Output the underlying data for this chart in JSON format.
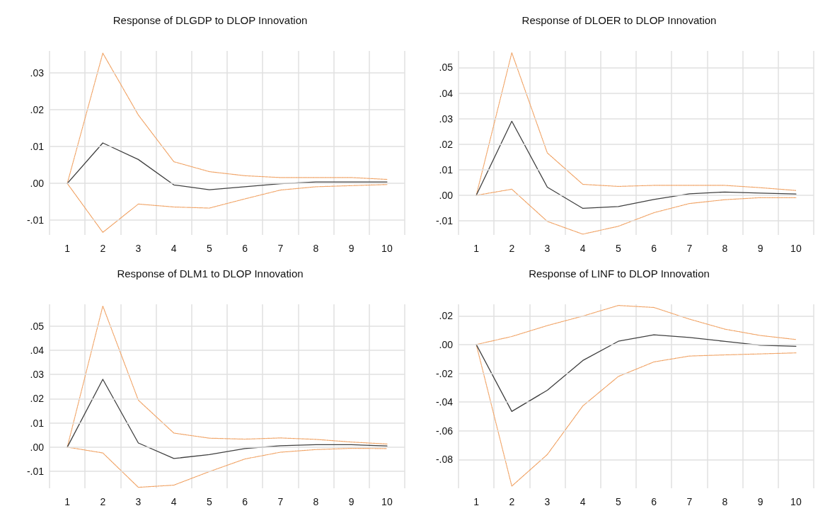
{
  "chart_data": [
    {
      "type": "line",
      "title": "Response of DLGDP to DLOP Innovation",
      "categories": [
        "1",
        "2",
        "3",
        "4",
        "5",
        "6",
        "7",
        "8",
        "9",
        "10"
      ],
      "ylim": [
        -0.014,
        0.036
      ],
      "yticks": [
        {
          "value": -0.01,
          "label": "-.01"
        },
        {
          "value": 0,
          "label": ".00"
        },
        {
          "value": 0.01,
          "label": ".01"
        },
        {
          "value": 0.02,
          "label": ".02"
        },
        {
          "value": 0.03,
          "label": ".03"
        }
      ],
      "grid": true,
      "marker": "none",
      "series": [
        {
          "color": "#404040",
          "line_style": "solid",
          "values": [
            0,
            0.011,
            0.0065,
            -0.0004,
            -0.0017,
            -0.0009,
            -0.0001,
            0.0004,
            0.0004,
            0.0004
          ]
        },
        {
          "color": "#f0a060",
          "line_style": "dotted",
          "values": [
            0,
            0.0354,
            0.0186,
            0.0059,
            0.0032,
            0.0021,
            0.0016,
            0.0016,
            0.0016,
            0.0011
          ]
        },
        {
          "color": "#f0a060",
          "line_style": "dotted",
          "values": [
            0,
            -0.0133,
            -0.0056,
            -0.0064,
            -0.0067,
            -0.0042,
            -0.0018,
            -0.0009,
            -0.0006,
            -0.0003
          ]
        }
      ]
    },
    {
      "type": "line",
      "title": "Response of DLOER to DLOP Innovation",
      "categories": [
        "1",
        "2",
        "3",
        "4",
        "5",
        "6",
        "7",
        "8",
        "9",
        "10"
      ],
      "ylim": [
        -0.0155,
        0.0565
      ],
      "yticks": [
        {
          "value": -0.01,
          "label": "-.01"
        },
        {
          "value": 0,
          "label": ".00"
        },
        {
          "value": 0.01,
          "label": ".01"
        },
        {
          "value": 0.02,
          "label": ".02"
        },
        {
          "value": 0.03,
          "label": ".03"
        },
        {
          "value": 0.04,
          "label": ".04"
        },
        {
          "value": 0.05,
          "label": ".05"
        }
      ],
      "grid": true,
      "marker": "none",
      "series": [
        {
          "color": "#404040",
          "line_style": "solid",
          "values": [
            0,
            0.029,
            0.0032,
            -0.0051,
            -0.0044,
            -0.0016,
            0.0006,
            0.0013,
            0.0009,
            0.0005
          ]
        },
        {
          "color": "#f0a060",
          "line_style": "dotted",
          "values": [
            0,
            0.0558,
            0.0166,
            0.0043,
            0.0035,
            0.0039,
            0.0039,
            0.0039,
            0.003,
            0.0019
          ]
        },
        {
          "color": "#f0a060",
          "line_style": "dotted",
          "values": [
            0,
            0.0024,
            -0.0102,
            -0.0152,
            -0.0121,
            -0.0068,
            -0.0032,
            -0.0017,
            -0.0009,
            -0.0009
          ]
        }
      ]
    },
    {
      "type": "line",
      "title": "Response of DLM1 to DLOP Innovation",
      "categories": [
        "1",
        "2",
        "3",
        "4",
        "5",
        "6",
        "7",
        "8",
        "9",
        "10"
      ],
      "ylim": [
        -0.017,
        0.059
      ],
      "yticks": [
        {
          "value": -0.01,
          "label": "-.01"
        },
        {
          "value": 0,
          "label": ".00"
        },
        {
          "value": 0.01,
          "label": ".01"
        },
        {
          "value": 0.02,
          "label": ".02"
        },
        {
          "value": 0.03,
          "label": ".03"
        },
        {
          "value": 0.04,
          "label": ".04"
        },
        {
          "value": 0.05,
          "label": ".05"
        }
      ],
      "grid": true,
      "marker": "none",
      "series": [
        {
          "color": "#404040",
          "line_style": "solid",
          "values": [
            0,
            0.028,
            0.0017,
            -0.0047,
            -0.0031,
            -0.0006,
            0.0006,
            0.001,
            0.001,
            0.0005
          ]
        },
        {
          "color": "#f0a060",
          "line_style": "dotted",
          "values": [
            0,
            0.0583,
            0.0194,
            0.0058,
            0.0037,
            0.0033,
            0.0038,
            0.0032,
            0.0021,
            0.0013
          ]
        },
        {
          "color": "#f0a060",
          "line_style": "dotted",
          "values": [
            0,
            -0.0024,
            -0.0166,
            -0.0157,
            -0.0101,
            -0.0049,
            -0.0021,
            -0.001,
            -0.0005,
            -0.0006
          ]
        }
      ]
    },
    {
      "type": "line",
      "title": "Response of LINF to DLOP Innovation",
      "categories": [
        "1",
        "2",
        "3",
        "4",
        "5",
        "6",
        "7",
        "8",
        "9",
        "10"
      ],
      "ylim": [
        -0.1,
        0.028
      ],
      "yticks": [
        {
          "value": -0.08,
          "label": "-.08"
        },
        {
          "value": -0.06,
          "label": "-.06"
        },
        {
          "value": -0.04,
          "label": "-.04"
        },
        {
          "value": -0.02,
          "label": "-.02"
        },
        {
          "value": 0,
          "label": ".00"
        },
        {
          "value": 0.02,
          "label": ".02"
        }
      ],
      "grid": true,
      "marker": "none",
      "series": [
        {
          "color": "#404040",
          "line_style": "solid",
          "values": [
            0,
            -0.0465,
            -0.0318,
            -0.0111,
            0.0023,
            0.0068,
            0.0049,
            0.0022,
            -0.0005,
            -0.0012
          ]
        },
        {
          "color": "#f0a060",
          "line_style": "dotted",
          "values": [
            0,
            0.0056,
            0.0132,
            0.0198,
            0.0272,
            0.0258,
            0.0177,
            0.0107,
            0.0063,
            0.0035
          ]
        },
        {
          "color": "#f0a060",
          "line_style": "dotted",
          "values": [
            0,
            -0.0985,
            -0.0765,
            -0.0427,
            -0.0222,
            -0.0121,
            -0.008,
            -0.0072,
            -0.0065,
            -0.0058
          ]
        }
      ]
    }
  ]
}
